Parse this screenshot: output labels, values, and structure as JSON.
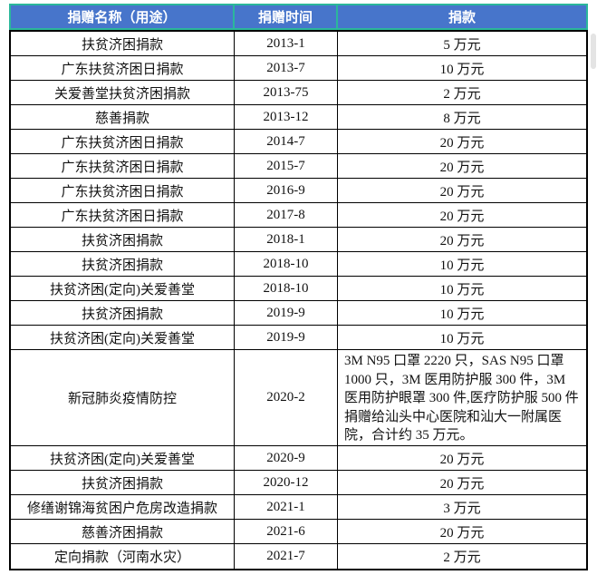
{
  "colors": {
    "header_bg": "#4775CB",
    "header_text": "#FFFFFF",
    "selection_outline": "#2BB79B",
    "grid_border": "#000000",
    "scrollbar_thumb": "#E4E4E4"
  },
  "table": {
    "headers": [
      "捐赠名称（用途）",
      "捐赠时间",
      "捐款"
    ],
    "rows": [
      {
        "name": "扶贫济困捐款",
        "date": "2013-1",
        "amount": "5 万元"
      },
      {
        "name": "广东扶贫济困日捐款",
        "date": "2013-7",
        "amount": "10 万元"
      },
      {
        "name": "关爱善堂扶贫济困捐款",
        "date": "2013-75",
        "amount": "2 万元"
      },
      {
        "name": "慈善捐款",
        "date": "2013-12",
        "amount": "8 万元"
      },
      {
        "name": "广东扶贫济困日捐款",
        "date": "2014-7",
        "amount": "20 万元"
      },
      {
        "name": "广东扶贫济困日捐款",
        "date": "2015-7",
        "amount": "20 万元"
      },
      {
        "name": "广东扶贫济困日捐款",
        "date": "2016-9",
        "amount": "20 万元"
      },
      {
        "name": "广东扶贫济困日捐款",
        "date": "2017-8",
        "amount": "20 万元"
      },
      {
        "name": "扶贫济困捐款",
        "date": "2018-1",
        "amount": "20 万元"
      },
      {
        "name": "扶贫济困捐款",
        "date": "2018-10",
        "amount": "10 万元"
      },
      {
        "name": "扶贫济困(定向)关爱善堂",
        "date": "2018-10",
        "amount": "10 万元"
      },
      {
        "name": "扶贫济困捐款",
        "date": "2019-9",
        "amount": "10 万元"
      },
      {
        "name": "扶贫济困(定向)关爱善堂",
        "date": "2019-9",
        "amount": "10 万元"
      },
      {
        "name": "新冠肺炎疫情防控",
        "date": "2020-2",
        "amount": "3M N95 口罩 2220 只，SAS N95 口罩 1000 只，3M 医用防护服 300 件，3M 医用防护眼罩 300 件,医疗防护服 500 件捐赠给汕头中心医院和汕大一附属医院，合计约 35 万元。"
      },
      {
        "name": "扶贫济困(定向)关爱善堂",
        "date": "2020-9",
        "amount": "20 万元"
      },
      {
        "name": "扶贫济困捐款",
        "date": "2020-12",
        "amount": "20 万元"
      },
      {
        "name": "修缮谢锦海贫困户危房改造捐款",
        "date": "2021-1",
        "amount": "3 万元"
      },
      {
        "name": "慈善济困捐款",
        "date": "2021-6",
        "amount": "20 万元"
      },
      {
        "name": "定向捐款（河南水灾）",
        "date": "2021-7",
        "amount": "2 万元"
      }
    ]
  }
}
